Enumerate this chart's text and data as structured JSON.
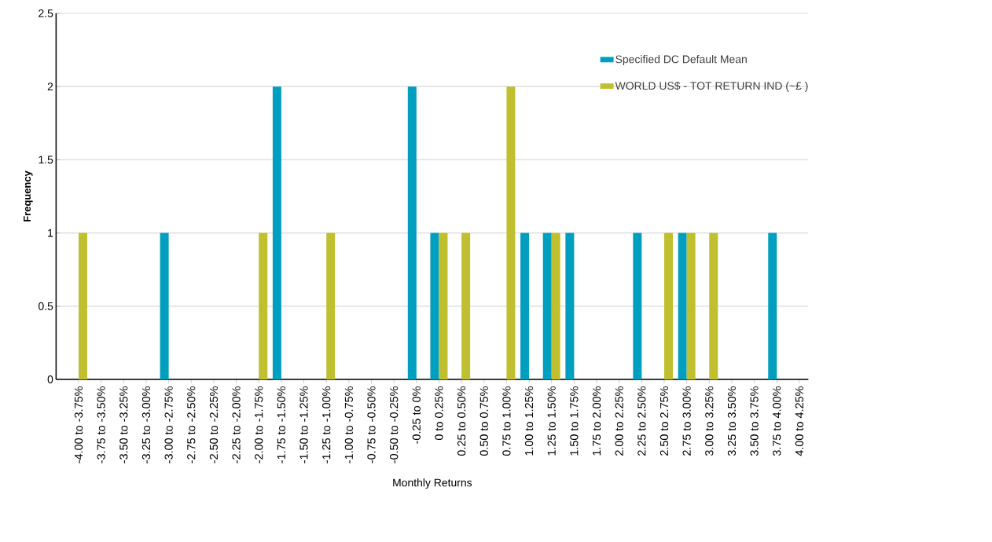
{
  "chart_data": {
    "type": "bar",
    "xlabel": "Monthly Returns",
    "ylabel": "Frequency",
    "categories": [
      "-4.00 to -3.75%",
      "-3.75 to -3.50%",
      "-3.50 to -3.25%",
      "-3.25 to -3.00%",
      "-3.00 to -2.75%",
      "-2.75 to -2.50%",
      "-2.50 to -2.25%",
      "-2.25 to -2.00%",
      "-2.00 to -1.75%",
      "-1.75 to -1.50%",
      "-1.50 to -1.25%",
      "-1.25 to -1.00%",
      "-1.00 to -0.75%",
      "-0.75 to -0.50%",
      "-0.50 to -0.25%",
      "-0.25 to 0%",
      "0 to 0.25%",
      "0.25 to 0.50%",
      "0.50 to 0.75%",
      "0.75 to 1.00%",
      "1.00 to 1.25%",
      "1.25 to 1.50%",
      "1.50 to 1.75%",
      "1.75 to 2.00%",
      "2.00 to 2.25%",
      "2.25 to 2.50%",
      "2.50 to 2.75%",
      "2.75 to 3.00%",
      "3.00 to 3.25%",
      "3.25 to 3.50%",
      "3.50 to 3.75%",
      "3.75 to 4.00%",
      "4.00 to 4.25%"
    ],
    "series": [
      {
        "name": "Specified DC Default Mean",
        "color": "#009ebf",
        "values": [
          0,
          0,
          0,
          0,
          1,
          0,
          0,
          0,
          0,
          2,
          0,
          0,
          0,
          0,
          0,
          2,
          1,
          0,
          0,
          0,
          1,
          1,
          1,
          0,
          0,
          1,
          0,
          1,
          0,
          0,
          0,
          1,
          0
        ]
      },
      {
        "name": "WORLD US$ - TOT RETURN IND (~£ )",
        "color": "#bfbf30",
        "values": [
          1,
          0,
          0,
          0,
          0,
          0,
          0,
          0,
          1,
          0,
          0,
          1,
          0,
          0,
          0,
          0,
          1,
          1,
          0,
          2,
          0,
          1,
          0,
          0,
          0,
          0,
          1,
          1,
          1,
          0,
          0,
          0,
          0
        ]
      }
    ],
    "ylim": [
      0,
      2.5
    ],
    "yticks": [
      0,
      0.5,
      1,
      1.5,
      2,
      2.5
    ],
    "grid": "y",
    "legend": "top right"
  }
}
